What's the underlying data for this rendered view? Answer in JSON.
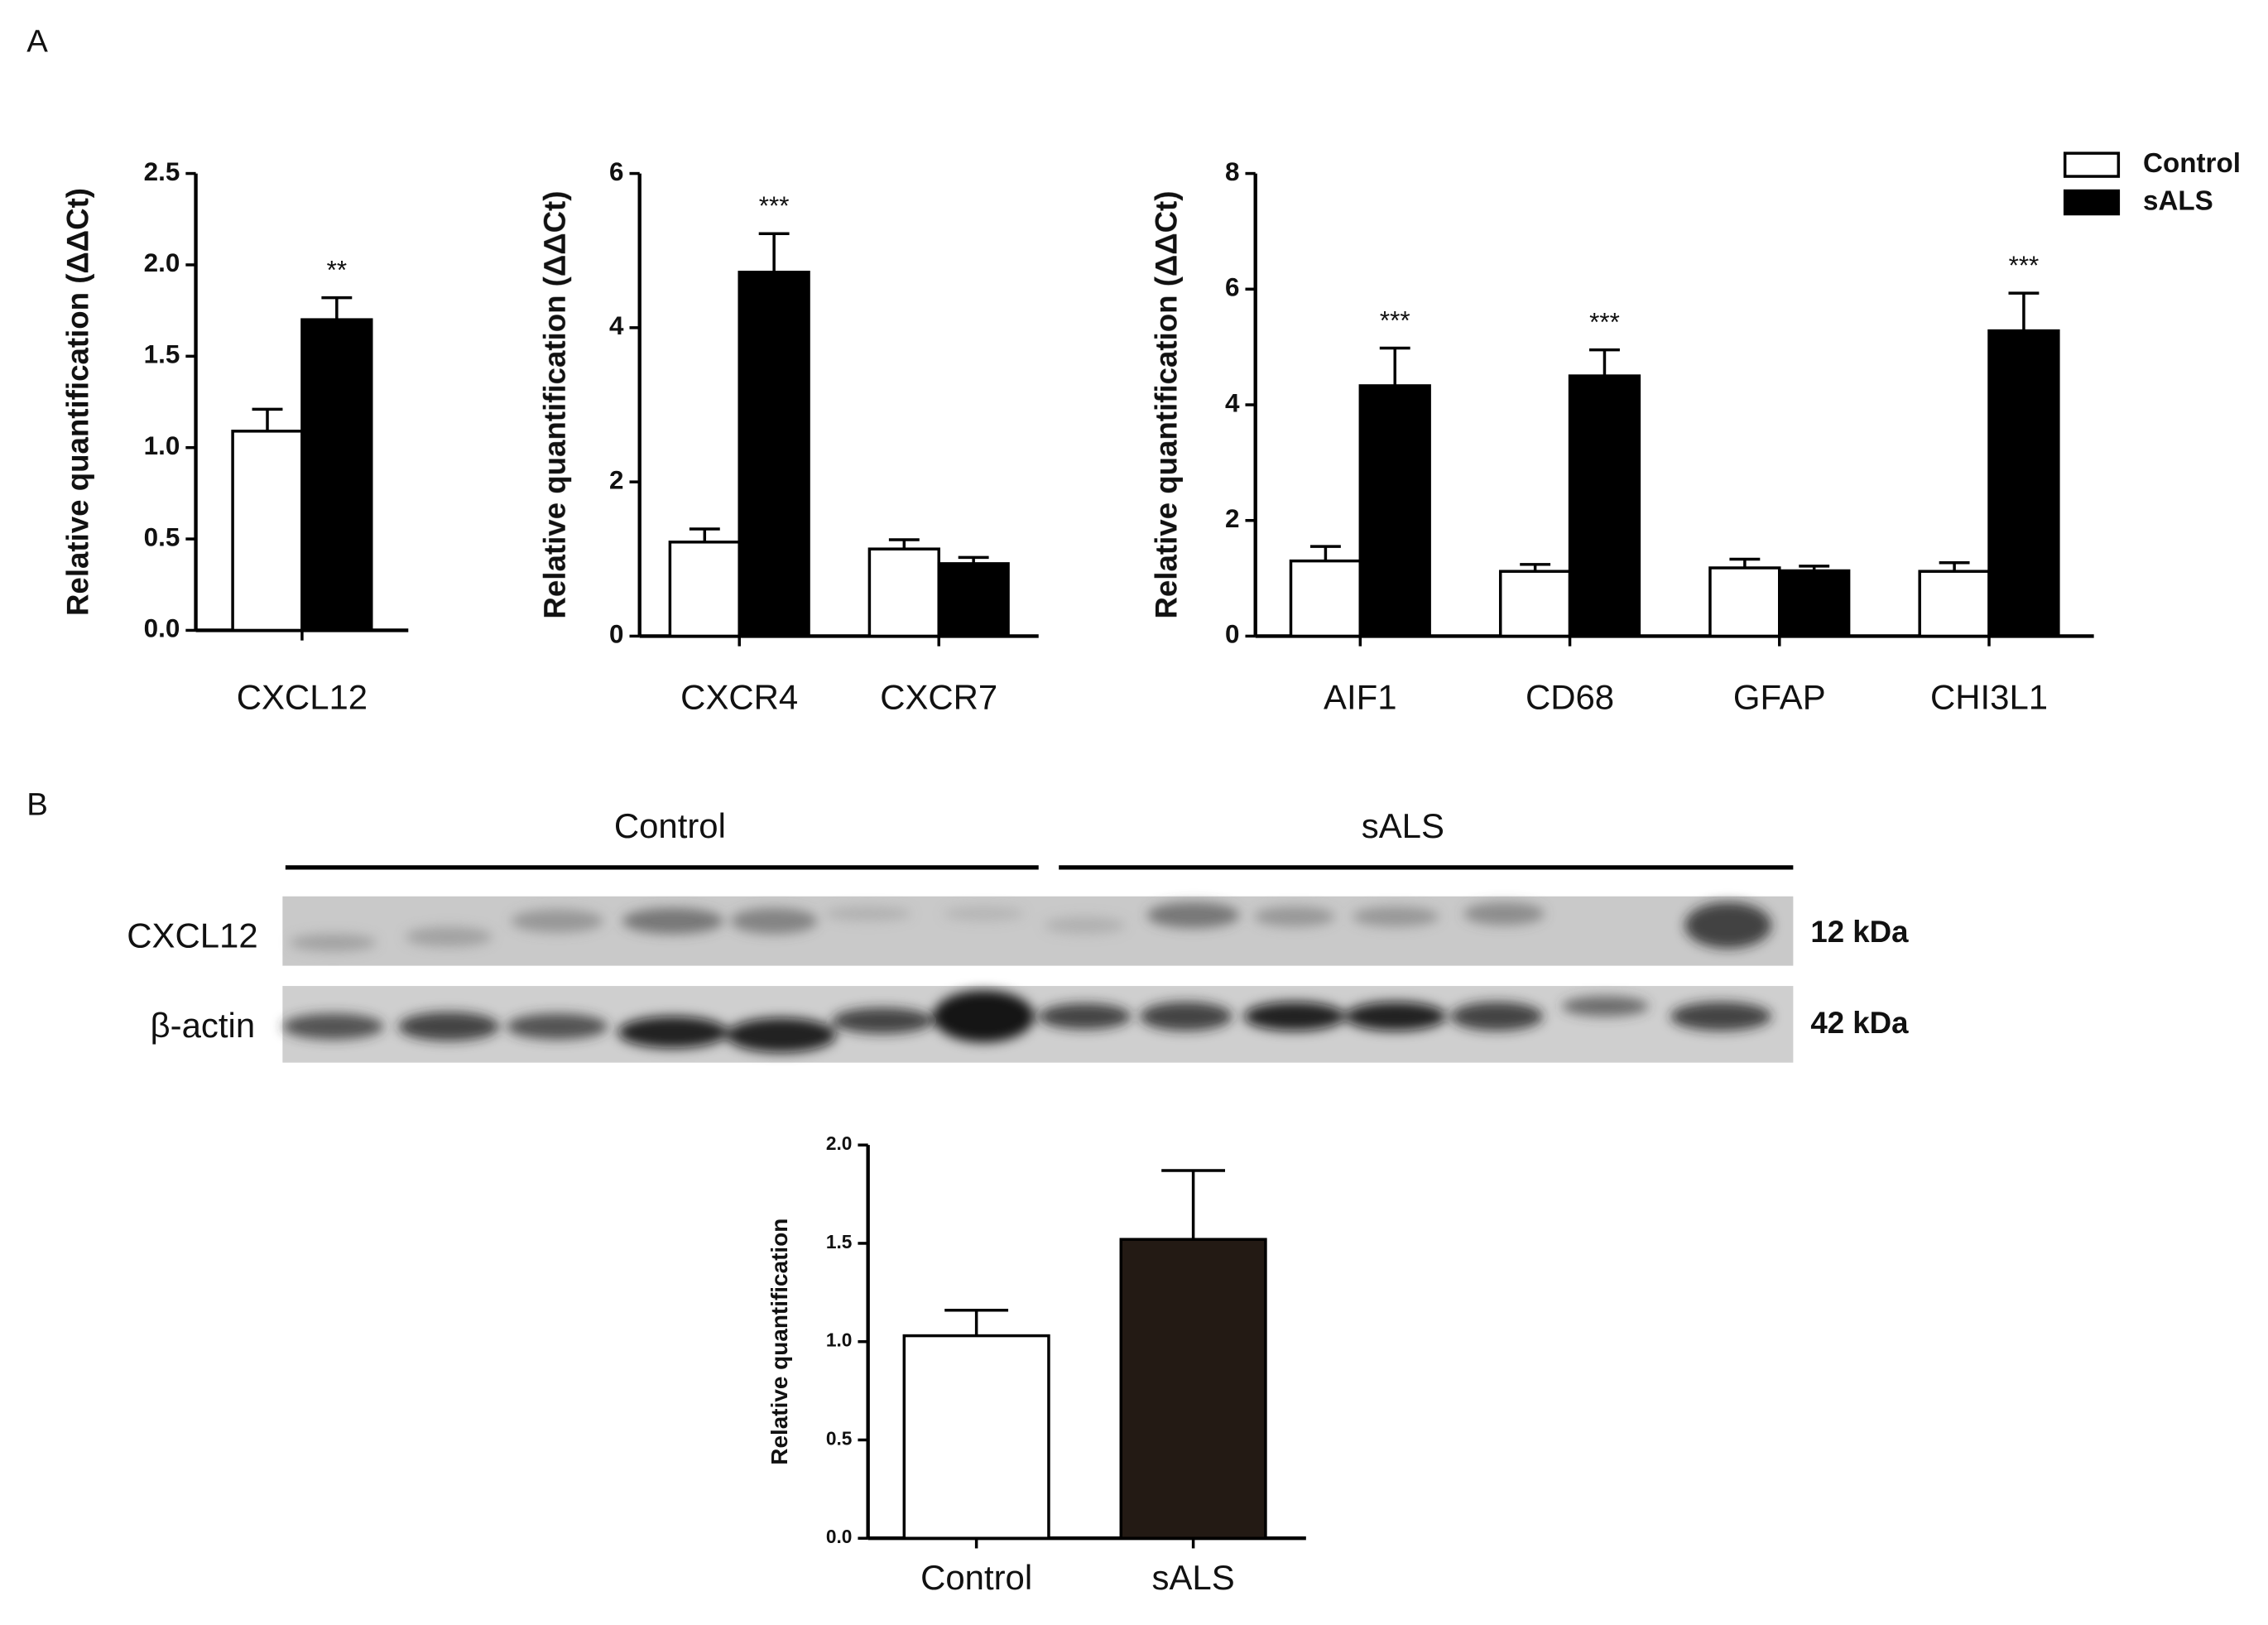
{
  "panel_labels": [
    "A",
    "B"
  ],
  "blot": {
    "groups": [
      "Control",
      "sALS"
    ],
    "rows": [
      "CXCL12",
      "β-actin"
    ],
    "sizes": [
      "12 kDa",
      "42 kDa"
    ]
  },
  "chart_data": [
    {
      "type": "bar",
      "y_label": "Relative quantification (ΔΔCt)",
      "categories": [
        "CXCL12"
      ],
      "series": [
        {
          "name": "Control",
          "color": "#ffffff",
          "values": [
            1.09
          ],
          "errors": [
            0.12
          ],
          "significance": [
            null
          ]
        },
        {
          "name": "sALS",
          "color": "#000000",
          "values": [
            1.7
          ],
          "errors": [
            0.12
          ],
          "significance": [
            "**"
          ]
        }
      ],
      "ylim": [
        0,
        2.5
      ],
      "yticks": [
        {
          "value": 0,
          "label": "0.0"
        },
        0.5,
        {
          "value": 1,
          "label": "1.0"
        },
        1.5,
        {
          "value": 2,
          "label": "2.0"
        },
        2.5
      ]
    },
    {
      "type": "bar",
      "y_label": "Relative quantification (ΔΔCt)",
      "categories": [
        "CXCR4",
        "CXCR7"
      ],
      "series": [
        {
          "name": "Control",
          "color": "#ffffff",
          "values": [
            1.22,
            1.13
          ],
          "errors": [
            0.17,
            0.12
          ],
          "significance": [
            null,
            null
          ]
        },
        {
          "name": "sALS",
          "color": "#000000",
          "values": [
            4.72,
            0.94
          ],
          "errors": [
            0.5,
            0.08
          ],
          "significance": [
            "***",
            null
          ]
        }
      ],
      "ylim": [
        0,
        6
      ],
      "yticks": [
        0,
        2,
        4,
        6
      ]
    },
    {
      "type": "bar",
      "y_label": "Relative quantification (ΔΔCt)",
      "categories": [
        "AIF1",
        "CD68",
        "GFAP",
        "CHI3L1"
      ],
      "series": [
        {
          "name": "Control",
          "color": "#ffffff",
          "values": [
            1.3,
            1.12,
            1.18,
            1.12
          ],
          "errors": [
            0.25,
            0.12,
            0.15,
            0.15
          ],
          "significance": [
            null,
            null,
            null,
            null
          ]
        },
        {
          "name": "sALS",
          "color": "#000000",
          "values": [
            4.33,
            4.5,
            1.13,
            5.28
          ],
          "errors": [
            0.65,
            0.45,
            0.08,
            0.65
          ],
          "significance": [
            "***",
            "***",
            null,
            "***"
          ]
        }
      ],
      "ylim": [
        0,
        8
      ],
      "yticks": [
        0,
        2,
        4,
        6,
        8
      ],
      "legend": "upper right"
    },
    {
      "type": "bar",
      "y_label": "Relative quantification",
      "categories": [
        "Control",
        "sALS"
      ],
      "values": [
        1.03,
        1.52
      ],
      "errors": [
        0.13,
        0.35
      ],
      "colors": [
        "#ffffff",
        "#231a14"
      ],
      "ylim": [
        0,
        2
      ],
      "yticks": [
        {
          "value": 0,
          "label": "0.0"
        },
        0.5,
        {
          "value": 1,
          "label": "1.0"
        },
        1.5,
        {
          "value": 2,
          "label": "2.0"
        }
      ]
    }
  ]
}
